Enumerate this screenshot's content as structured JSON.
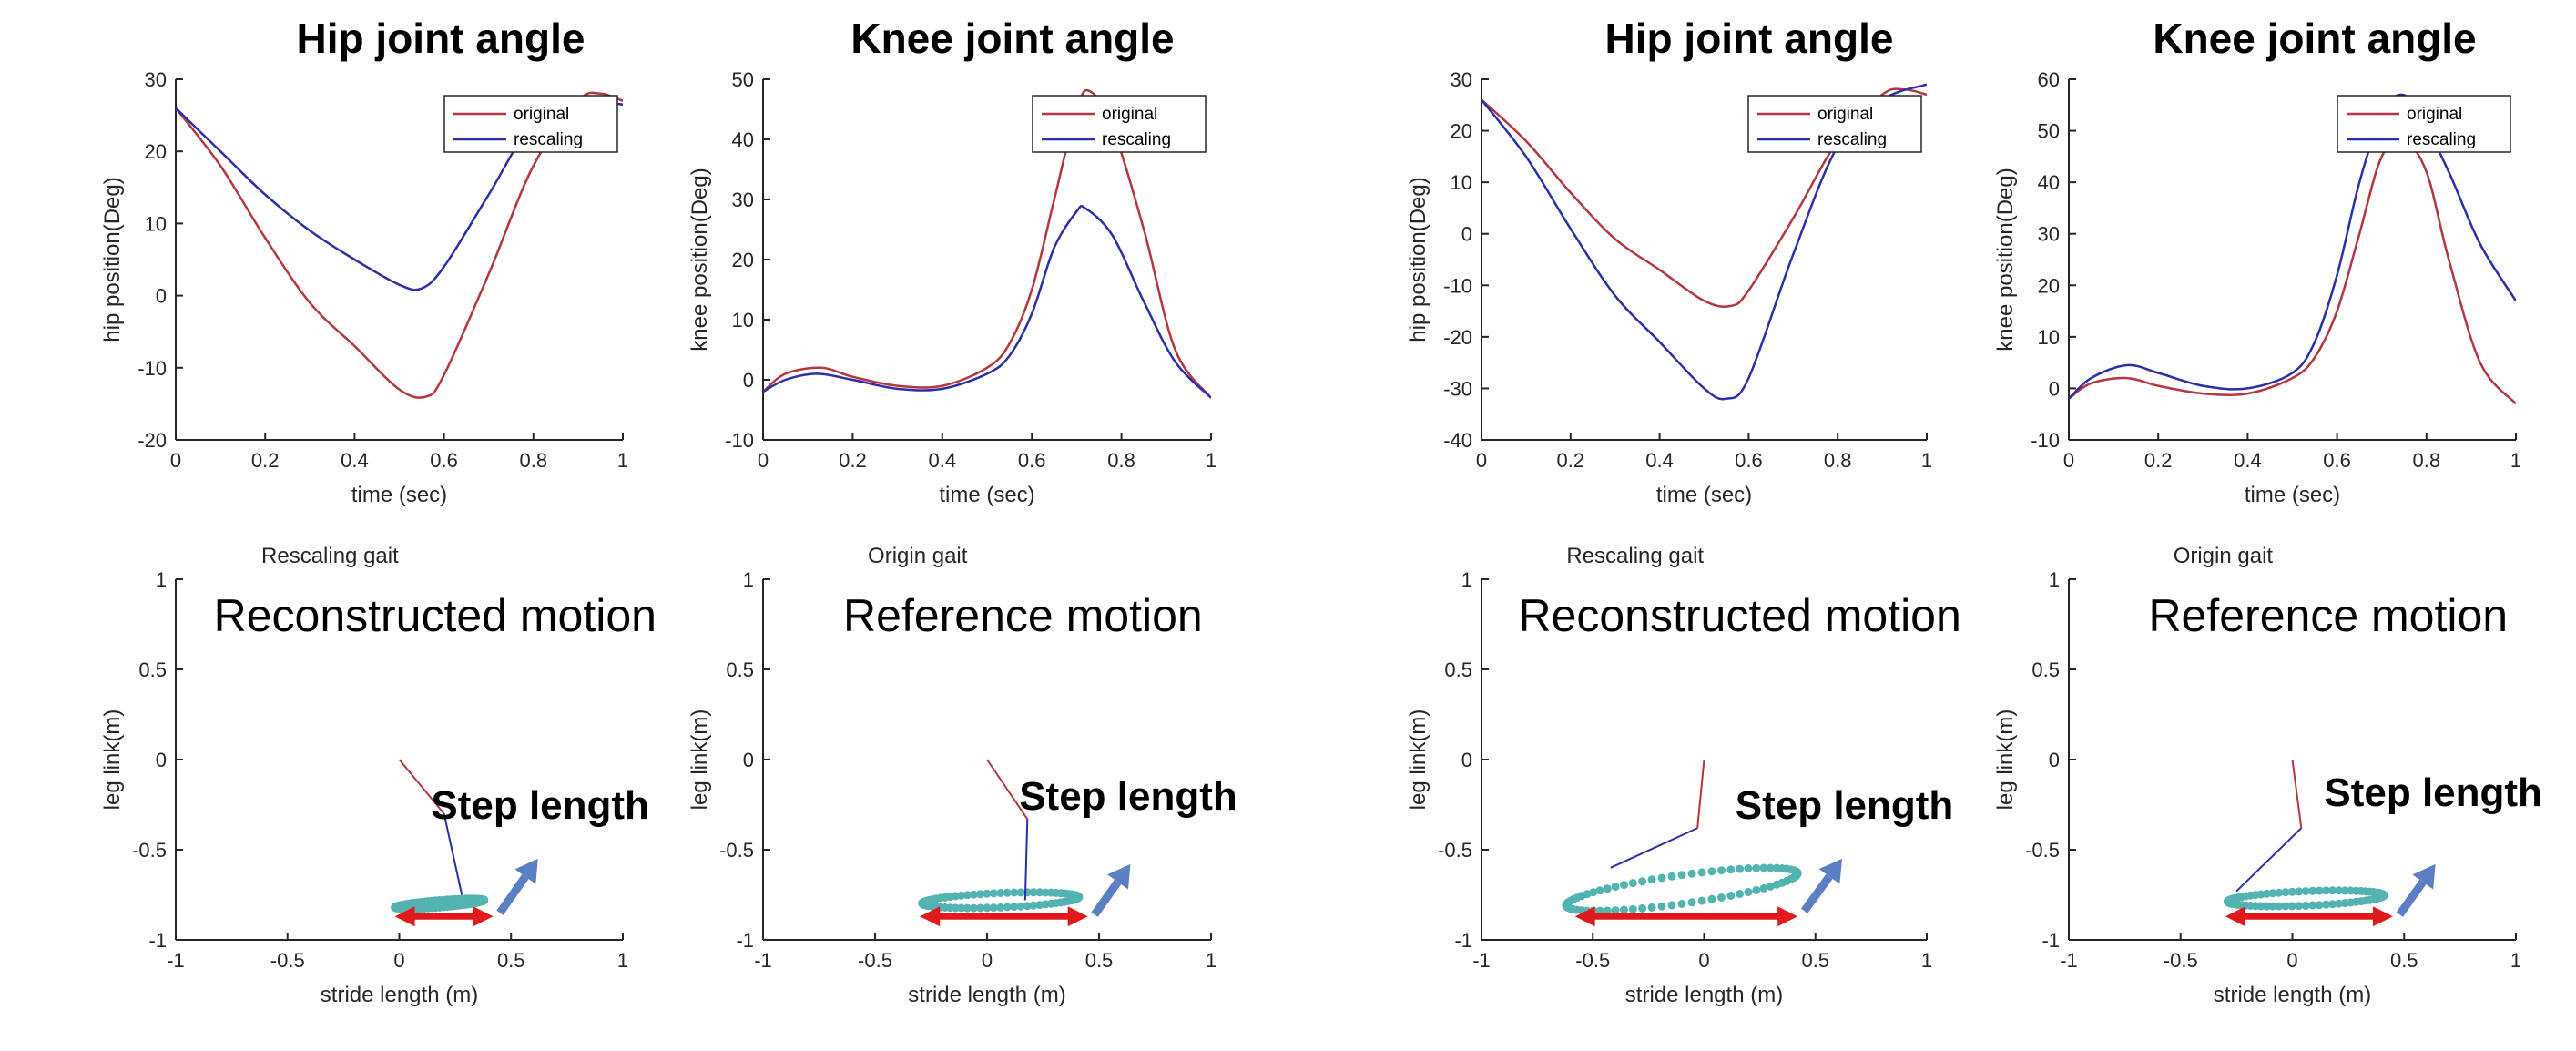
{
  "colors": {
    "original": "#b5363f",
    "rescaling": "#2b2fa8",
    "foot_path": "#52b3b0",
    "stride_arrow": "#e01a1a",
    "step_arrow": "#5b7fc4",
    "stick_red": "#b5363f",
    "stick_blue": "#2b2fa8"
  },
  "chart_data": [
    {
      "id": "hip_left",
      "type": "line",
      "title": "Hip joint angle",
      "xlabel": "time (sec)",
      "ylabel": "hip position(Deg)",
      "xlim": [
        0,
        1
      ],
      "ylim": [
        -20,
        30
      ],
      "xticks": [
        0,
        0.2,
        0.4,
        0.6,
        0.8,
        1
      ],
      "xtick_labels": [
        "0",
        "0.2",
        "0.4",
        "0.6",
        "0.8",
        "1"
      ],
      "yticks": [
        -20,
        -10,
        0,
        10,
        20,
        30
      ],
      "ytick_labels": [
        "-20",
        "-10",
        "0",
        "10",
        "20",
        "30"
      ],
      "legend": "top-right",
      "series": [
        {
          "name": "original",
          "color_key": "original",
          "x": [
            0,
            0.1,
            0.2,
            0.3,
            0.4,
            0.5,
            0.56,
            0.6,
            0.7,
            0.8,
            0.9,
            0.95,
            1
          ],
          "y": [
            26,
            18,
            8,
            -1,
            -7,
            -13,
            -14,
            -11,
            3,
            18,
            27,
            28,
            27
          ]
        },
        {
          "name": "rescaling",
          "color_key": "rescaling",
          "x": [
            0,
            0.1,
            0.2,
            0.3,
            0.4,
            0.5,
            0.55,
            0.6,
            0.7,
            0.8,
            0.9,
            1
          ],
          "y": [
            26,
            20,
            14,
            9,
            5,
            1.5,
            1,
            4,
            14,
            24,
            27,
            26.5
          ]
        }
      ]
    },
    {
      "id": "knee_left",
      "type": "line",
      "title": "Knee joint angle",
      "xlabel": "time (sec)",
      "ylabel": "knee position(Deg)",
      "xlim": [
        0,
        1
      ],
      "ylim": [
        -10,
        50
      ],
      "xticks": [
        0,
        0.2,
        0.4,
        0.6,
        0.8,
        1
      ],
      "xtick_labels": [
        "0",
        "0.2",
        "0.4",
        "0.6",
        "0.8",
        "1"
      ],
      "yticks": [
        -10,
        0,
        10,
        20,
        30,
        40,
        50
      ],
      "ytick_labels": [
        "-10",
        "0",
        "10",
        "20",
        "30",
        "40",
        "50"
      ],
      "legend": "top-right",
      "series": [
        {
          "name": "original",
          "color_key": "original",
          "x": [
            0,
            0.05,
            0.13,
            0.2,
            0.3,
            0.4,
            0.5,
            0.55,
            0.6,
            0.65,
            0.7,
            0.73,
            0.78,
            0.85,
            0.92,
            1
          ],
          "y": [
            -2,
            1,
            2,
            0.5,
            -1,
            -1,
            2,
            6,
            15,
            30,
            45,
            48,
            42,
            25,
            5,
            -3
          ]
        },
        {
          "name": "rescaling",
          "color_key": "rescaling",
          "x": [
            0,
            0.05,
            0.12,
            0.2,
            0.3,
            0.4,
            0.5,
            0.55,
            0.6,
            0.65,
            0.7,
            0.72,
            0.78,
            0.85,
            0.92,
            1
          ],
          "y": [
            -2,
            0,
            1,
            0,
            -1.5,
            -1.5,
            1,
            4,
            11,
            22,
            28,
            28.5,
            24,
            13,
            3,
            -3
          ]
        }
      ]
    },
    {
      "id": "hip_right",
      "type": "line",
      "title": "Hip joint angle",
      "xlabel": "time (sec)",
      "ylabel": "hip position(Deg)",
      "xlim": [
        0,
        1
      ],
      "ylim": [
        -40,
        30
      ],
      "xticks": [
        0,
        0.2,
        0.4,
        0.6,
        0.8,
        1
      ],
      "xtick_labels": [
        "0",
        "0.2",
        "0.4",
        "0.6",
        "0.8",
        "1"
      ],
      "yticks": [
        -40,
        -30,
        -20,
        -10,
        0,
        10,
        20,
        30
      ],
      "ytick_labels": [
        "-40",
        "-30",
        "-20",
        "-10",
        "0",
        "10",
        "20",
        "30"
      ],
      "legend": "top-right",
      "series": [
        {
          "name": "original",
          "color_key": "original",
          "x": [
            0,
            0.1,
            0.2,
            0.3,
            0.4,
            0.5,
            0.56,
            0.6,
            0.7,
            0.8,
            0.9,
            0.95,
            1
          ],
          "y": [
            26,
            18,
            8,
            -1,
            -7,
            -13,
            -14,
            -11,
            3,
            18,
            27,
            28,
            27
          ]
        },
        {
          "name": "rescaling",
          "color_key": "rescaling",
          "x": [
            0,
            0.1,
            0.2,
            0.3,
            0.4,
            0.5,
            0.55,
            0.6,
            0.7,
            0.8,
            0.9,
            1
          ],
          "y": [
            26,
            15,
            1,
            -12,
            -21,
            -30,
            -32,
            -28,
            -4,
            17,
            26,
            29
          ]
        }
      ]
    },
    {
      "id": "knee_right",
      "type": "line",
      "title": "Knee joint angle",
      "xlabel": "time (sec)",
      "ylabel": "knee position(Deg)",
      "xlim": [
        0,
        1
      ],
      "ylim": [
        -10,
        60
      ],
      "xticks": [
        0,
        0.2,
        0.4,
        0.6,
        0.8,
        1
      ],
      "xtick_labels": [
        "0",
        "0.2",
        "0.4",
        "0.6",
        "0.8",
        "1"
      ],
      "yticks": [
        -10,
        0,
        10,
        20,
        30,
        40,
        50,
        60
      ],
      "ytick_labels": [
        "-10",
        "0",
        "10",
        "20",
        "30",
        "40",
        "50",
        "60"
      ],
      "legend": "top-right",
      "series": [
        {
          "name": "original",
          "color_key": "original",
          "x": [
            0,
            0.05,
            0.13,
            0.2,
            0.3,
            0.4,
            0.5,
            0.55,
            0.6,
            0.65,
            0.7,
            0.75,
            0.8,
            0.85,
            0.92,
            1
          ],
          "y": [
            -2,
            1,
            2,
            0.5,
            -1,
            -1,
            2,
            6,
            15,
            30,
            45,
            48,
            42,
            25,
            5,
            -3
          ]
        },
        {
          "name": "rescaling",
          "color_key": "rescaling",
          "x": [
            0,
            0.05,
            0.13,
            0.2,
            0.3,
            0.4,
            0.5,
            0.55,
            0.6,
            0.65,
            0.7,
            0.74,
            0.78,
            0.85,
            0.92,
            1
          ],
          "y": [
            -2,
            2,
            4.5,
            3,
            0.5,
            0,
            3,
            9,
            22,
            40,
            53,
            57,
            54,
            42,
            28,
            17
          ]
        }
      ]
    },
    {
      "id": "gait_1",
      "type": "scatter",
      "title": "Rescaling gait",
      "annotation": "Reconstructed motion",
      "step_label": "Step length",
      "xlabel": "stride length (m)",
      "ylabel": "leg link(m)",
      "xlim": [
        -1,
        1
      ],
      "ylim": [
        -1,
        1
      ],
      "xticks": [
        -1,
        -0.5,
        0,
        0.5,
        1
      ],
      "xtick_labels": [
        "-1",
        "-0.5",
        "0",
        "0.5",
        "1"
      ],
      "yticks": [
        -1,
        -0.5,
        0,
        0.5,
        1
      ],
      "ytick_labels": [
        "-1",
        "-0.5",
        "0",
        "0.5",
        "1"
      ],
      "foot_path": {
        "cx": 0.18,
        "cy": -0.8,
        "rx": 0.2,
        "ry": 0.02,
        "tilt": 0.1
      },
      "links": [
        {
          "color_key": "stick_red",
          "from": [
            0,
            0
          ],
          "to": [
            0.2,
            -0.3
          ]
        },
        {
          "color_key": "stick_blue",
          "from": [
            0.2,
            -0.3
          ],
          "to": [
            0.28,
            -0.75
          ]
        }
      ],
      "stride_arrow": [
        -0.02,
        0.42
      ],
      "step_arrow": {
        "from": [
          0.45,
          -0.85
        ],
        "to": [
          0.62,
          -0.55
        ]
      }
    },
    {
      "id": "gait_2",
      "type": "scatter",
      "title": "Origin gait",
      "annotation": "Reference motion",
      "step_label": "Step length",
      "xlabel": "stride length (m)",
      "ylabel": "leg link(m)",
      "xlim": [
        -1,
        1
      ],
      "ylim": [
        -1,
        1
      ],
      "xticks": [
        -1,
        -0.5,
        0,
        0.5,
        1
      ],
      "xtick_labels": [
        "-1",
        "-0.5",
        "0",
        "0.5",
        "1"
      ],
      "yticks": [
        -1,
        -0.5,
        0,
        0.5,
        1
      ],
      "ytick_labels": [
        "-1",
        "-0.5",
        "0",
        "0.5",
        "1"
      ],
      "foot_path": {
        "cx": 0.06,
        "cy": -0.78,
        "rx": 0.35,
        "ry": 0.04,
        "tilt": 0.05
      },
      "links": [
        {
          "color_key": "stick_red",
          "from": [
            0,
            0
          ],
          "to": [
            0.18,
            -0.33
          ]
        },
        {
          "color_key": "stick_blue",
          "from": [
            0.18,
            -0.33
          ],
          "to": [
            0.17,
            -0.78
          ]
        }
      ],
      "stride_arrow": [
        -0.3,
        0.45
      ],
      "step_arrow": {
        "from": [
          0.48,
          -0.86
        ],
        "to": [
          0.64,
          -0.58
        ]
      }
    },
    {
      "id": "gait_3",
      "type": "scatter",
      "title": "Rescaling gait",
      "annotation": "Reconstructed motion",
      "step_label": "Step length",
      "xlabel": "stride length (m)",
      "ylabel": "leg link(m)",
      "xlim": [
        -1,
        1
      ],
      "ylim": [
        -1,
        1
      ],
      "xticks": [
        -1,
        -0.5,
        0,
        0.5,
        1
      ],
      "xtick_labels": [
        "-1",
        "-0.5",
        "0",
        "0.5",
        "1"
      ],
      "yticks": [
        -1,
        -0.5,
        0,
        0.5,
        1
      ],
      "ytick_labels": [
        "-1",
        "-0.5",
        "0",
        "0.5",
        "1"
      ],
      "foot_path": {
        "cx": -0.1,
        "cy": -0.72,
        "rx": 0.52,
        "ry": 0.08,
        "tilt": 0.17
      },
      "links": [
        {
          "color_key": "stick_red",
          "from": [
            0,
            0
          ],
          "to": [
            -0.03,
            -0.38
          ]
        },
        {
          "color_key": "stick_blue",
          "from": [
            -0.03,
            -0.38
          ],
          "to": [
            -0.42,
            -0.6
          ]
        }
      ],
      "stride_arrow": [
        -0.58,
        0.42
      ],
      "step_arrow": {
        "from": [
          0.45,
          -0.84
        ],
        "to": [
          0.62,
          -0.55
        ]
      }
    },
    {
      "id": "gait_4",
      "type": "scatter",
      "title": "Origin gait",
      "annotation": "Reference motion",
      "step_label": "Step length",
      "xlabel": "stride length (m)",
      "ylabel": "leg link(m)",
      "xlim": [
        -1,
        1
      ],
      "ylim": [
        -1,
        1
      ],
      "xticks": [
        -1,
        -0.5,
        0,
        0.5,
        1
      ],
      "xtick_labels": [
        "-1",
        "-0.5",
        "0",
        "0.5",
        "1"
      ],
      "yticks": [
        -1,
        -0.5,
        0,
        0.5,
        1
      ],
      "ytick_labels": [
        "-1",
        "-0.5",
        "0",
        "0.5",
        "1"
      ],
      "foot_path": {
        "cx": 0.06,
        "cy": -0.77,
        "rx": 0.35,
        "ry": 0.04,
        "tilt": 0.05
      },
      "links": [
        {
          "color_key": "stick_red",
          "from": [
            0,
            0
          ],
          "to": [
            0.04,
            -0.38
          ]
        },
        {
          "color_key": "stick_blue",
          "from": [
            0.04,
            -0.38
          ],
          "to": [
            -0.25,
            -0.73
          ]
        }
      ],
      "stride_arrow": [
        -0.3,
        0.45
      ],
      "step_arrow": {
        "from": [
          0.48,
          -0.86
        ],
        "to": [
          0.64,
          -0.58
        ]
      }
    }
  ]
}
